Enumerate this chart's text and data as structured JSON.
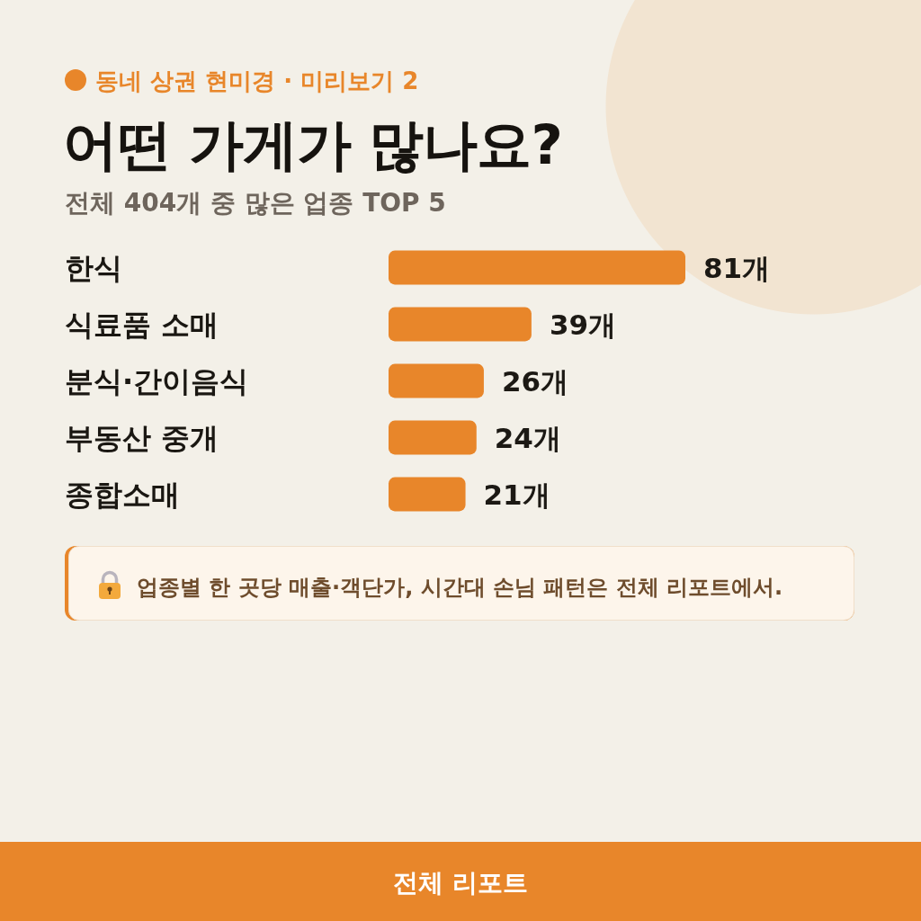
{
  "chart_data": {
    "type": "bar",
    "orientation": "horizontal",
    "title": "어떤 가게가 많나요?",
    "subtitle": "전체 404개 중 많은 업종 TOP 5",
    "annotations": [
      "동네 상권 현미경 · 미리보기 2",
      "업종별 한 곳당 매출·객단가, 시간대 손님 패턴은 전체 리포트에서.",
      "전체 리포트"
    ],
    "categories": [
      "한식",
      "식료품 소매",
      "분식·간이음식",
      "부동산 중개",
      "종합소매"
    ],
    "values": [
      81,
      39,
      26,
      24,
      21
    ],
    "value_labels": [
      "81개",
      "39개",
      "26개",
      "24개",
      "21개"
    ],
    "color": "#e8862a"
  }
}
